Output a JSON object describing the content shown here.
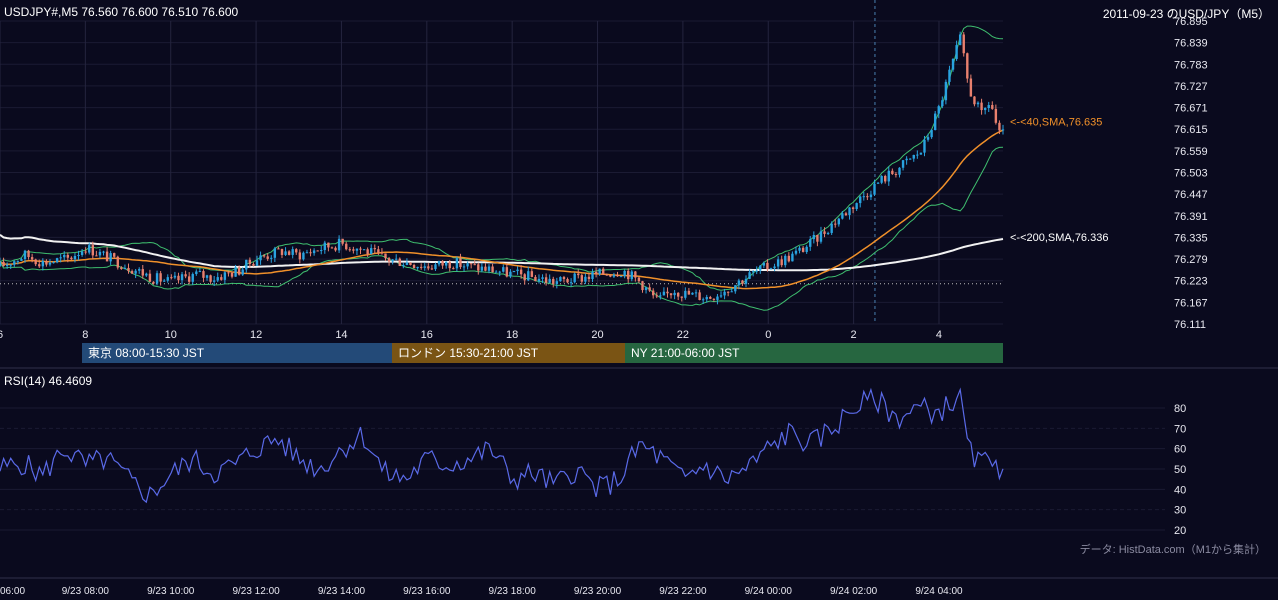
{
  "header": {
    "symbol_line": "USDJPY#,M5 76.560 76.600 76.510 76.600",
    "date_title": "2011-09-23 のUSD/JPY（M5）"
  },
  "sessions": [
    {
      "label": "東京 08:00-15:30 JST",
      "color": "#234a78"
    },
    {
      "label": "ロンドン 15:30-21:00 JST",
      "color": "#7a5414"
    },
    {
      "label": "NY 21:00-06:00 JST",
      "color": "#266640"
    }
  ],
  "rsi": {
    "label": "RSI(14) 46.4609"
  },
  "source_note": "データ: HistData.com（M1から集計）",
  "colors": {
    "background": "#0a0a1e",
    "up": "#29a3e0",
    "down": "#e8806e",
    "sma40": "#f0902a",
    "sma200": "#f2f2f2",
    "bollinger": "#3fbf6f",
    "rsi_line": "#5a6ae8"
  },
  "chart_data": [
    {
      "type": "candlestick",
      "timeframe": "M5",
      "y_ticks": [
        "76.895",
        "76.839",
        "76.783",
        "76.727",
        "76.671",
        "76.615",
        "76.559",
        "76.503",
        "76.447",
        "76.391",
        "76.335",
        "76.279",
        "76.223",
        "76.167",
        "76.111"
      ],
      "ylim": [
        76.111,
        76.895
      ],
      "x_ticks": [
        "6",
        "8",
        "10",
        "12",
        "14",
        "16",
        "18",
        "20",
        "22",
        "0",
        "2",
        "4"
      ],
      "x_hours_range": [
        6,
        29.5
      ],
      "overlays": [
        {
          "name": "<-<40,SMA,76.635",
          "value": 76.635
        },
        {
          "name": "<-<200,SMA,76.336",
          "value": 76.336
        }
      ],
      "reference_line": 76.215,
      "cursor_hour": 26.5,
      "ohlc_anchors": [
        [
          6.0,
          76.26
        ],
        [
          6.6,
          76.29
        ],
        [
          7.0,
          76.27
        ],
        [
          7.6,
          76.28
        ],
        [
          8.0,
          76.31
        ],
        [
          8.6,
          76.28
        ],
        [
          9.0,
          76.26
        ],
        [
          9.6,
          76.23
        ],
        [
          10.0,
          76.22
        ],
        [
          10.6,
          76.24
        ],
        [
          11.0,
          76.23
        ],
        [
          11.6,
          76.25
        ],
        [
          12.0,
          76.28
        ],
        [
          12.6,
          76.3
        ],
        [
          13.0,
          76.29
        ],
        [
          13.6,
          76.31
        ],
        [
          14.0,
          76.32
        ],
        [
          14.6,
          76.3
        ],
        [
          15.0,
          76.28
        ],
        [
          15.6,
          76.27
        ],
        [
          16.0,
          76.26
        ],
        [
          16.6,
          76.27
        ],
        [
          17.0,
          76.26
        ],
        [
          17.6,
          76.25
        ],
        [
          18.0,
          76.24
        ],
        [
          18.6,
          76.23
        ],
        [
          19.0,
          76.22
        ],
        [
          19.6,
          76.23
        ],
        [
          20.0,
          76.24
        ],
        [
          20.6,
          76.25
        ],
        [
          21.0,
          76.22
        ],
        [
          21.4,
          76.17
        ],
        [
          21.8,
          76.2
        ],
        [
          22.0,
          76.19
        ],
        [
          22.6,
          76.18
        ],
        [
          23.0,
          76.2
        ],
        [
          23.6,
          76.24
        ],
        [
          24.0,
          76.26
        ],
        [
          24.6,
          76.29
        ],
        [
          25.0,
          76.32
        ],
        [
          25.6,
          76.38
        ],
        [
          26.0,
          76.42
        ],
        [
          26.6,
          76.48
        ],
        [
          27.0,
          76.51
        ],
        [
          27.6,
          76.56
        ],
        [
          28.0,
          76.67
        ],
        [
          28.3,
          76.78
        ],
        [
          28.5,
          76.85
        ],
        [
          28.7,
          76.72
        ],
        [
          29.0,
          76.65
        ],
        [
          29.2,
          76.69
        ],
        [
          29.4,
          76.6
        ],
        [
          29.5,
          76.6
        ]
      ]
    },
    {
      "type": "line",
      "name": "RSI(14)",
      "y_ticks": [
        "80",
        "70",
        "60",
        "50",
        "40",
        "30",
        "20"
      ],
      "ylim": [
        20,
        80
      ],
      "x_tick_labels": [
        "06:00",
        "9/23 08:00",
        "9/23 10:00",
        "9/23 12:00",
        "9/23 14:00",
        "9/23 16:00",
        "9/23 18:00",
        "9/23 20:00",
        "9/23 22:00",
        "9/24 00:00",
        "9/24 02:00",
        "9/24 04:00"
      ],
      "rsi_anchors": [
        [
          6.0,
          50
        ],
        [
          6.5,
          53
        ],
        [
          7.0,
          47
        ],
        [
          7.5,
          60
        ],
        [
          8.0,
          52
        ],
        [
          8.5,
          55
        ],
        [
          9.0,
          45
        ],
        [
          9.5,
          37
        ],
        [
          10.0,
          47
        ],
        [
          10.5,
          55
        ],
        [
          11.0,
          48
        ],
        [
          11.5,
          52
        ],
        [
          12.0,
          60
        ],
        [
          12.5,
          65
        ],
        [
          13.0,
          55
        ],
        [
          13.5,
          50
        ],
        [
          14.0,
          60
        ],
        [
          14.5,
          67
        ],
        [
          15.0,
          48
        ],
        [
          15.5,
          45
        ],
        [
          16.0,
          55
        ],
        [
          16.5,
          52
        ],
        [
          17.0,
          55
        ],
        [
          17.5,
          60
        ],
        [
          18.0,
          45
        ],
        [
          18.5,
          48
        ],
        [
          19.0,
          42
        ],
        [
          19.5,
          50
        ],
        [
          20.0,
          40
        ],
        [
          20.5,
          45
        ],
        [
          21.0,
          62
        ],
        [
          21.5,
          55
        ],
        [
          22.0,
          45
        ],
        [
          22.5,
          52
        ],
        [
          23.0,
          45
        ],
        [
          23.5,
          50
        ],
        [
          24.0,
          60
        ],
        [
          24.5,
          68
        ],
        [
          25.0,
          62
        ],
        [
          25.5,
          70
        ],
        [
          26.0,
          80
        ],
        [
          26.5,
          85
        ],
        [
          27.0,
          75
        ],
        [
          27.5,
          80
        ],
        [
          28.0,
          78
        ],
        [
          28.5,
          86
        ],
        [
          28.7,
          58
        ],
        [
          29.0,
          52
        ],
        [
          29.3,
          58
        ],
        [
          29.5,
          46
        ]
      ]
    }
  ]
}
